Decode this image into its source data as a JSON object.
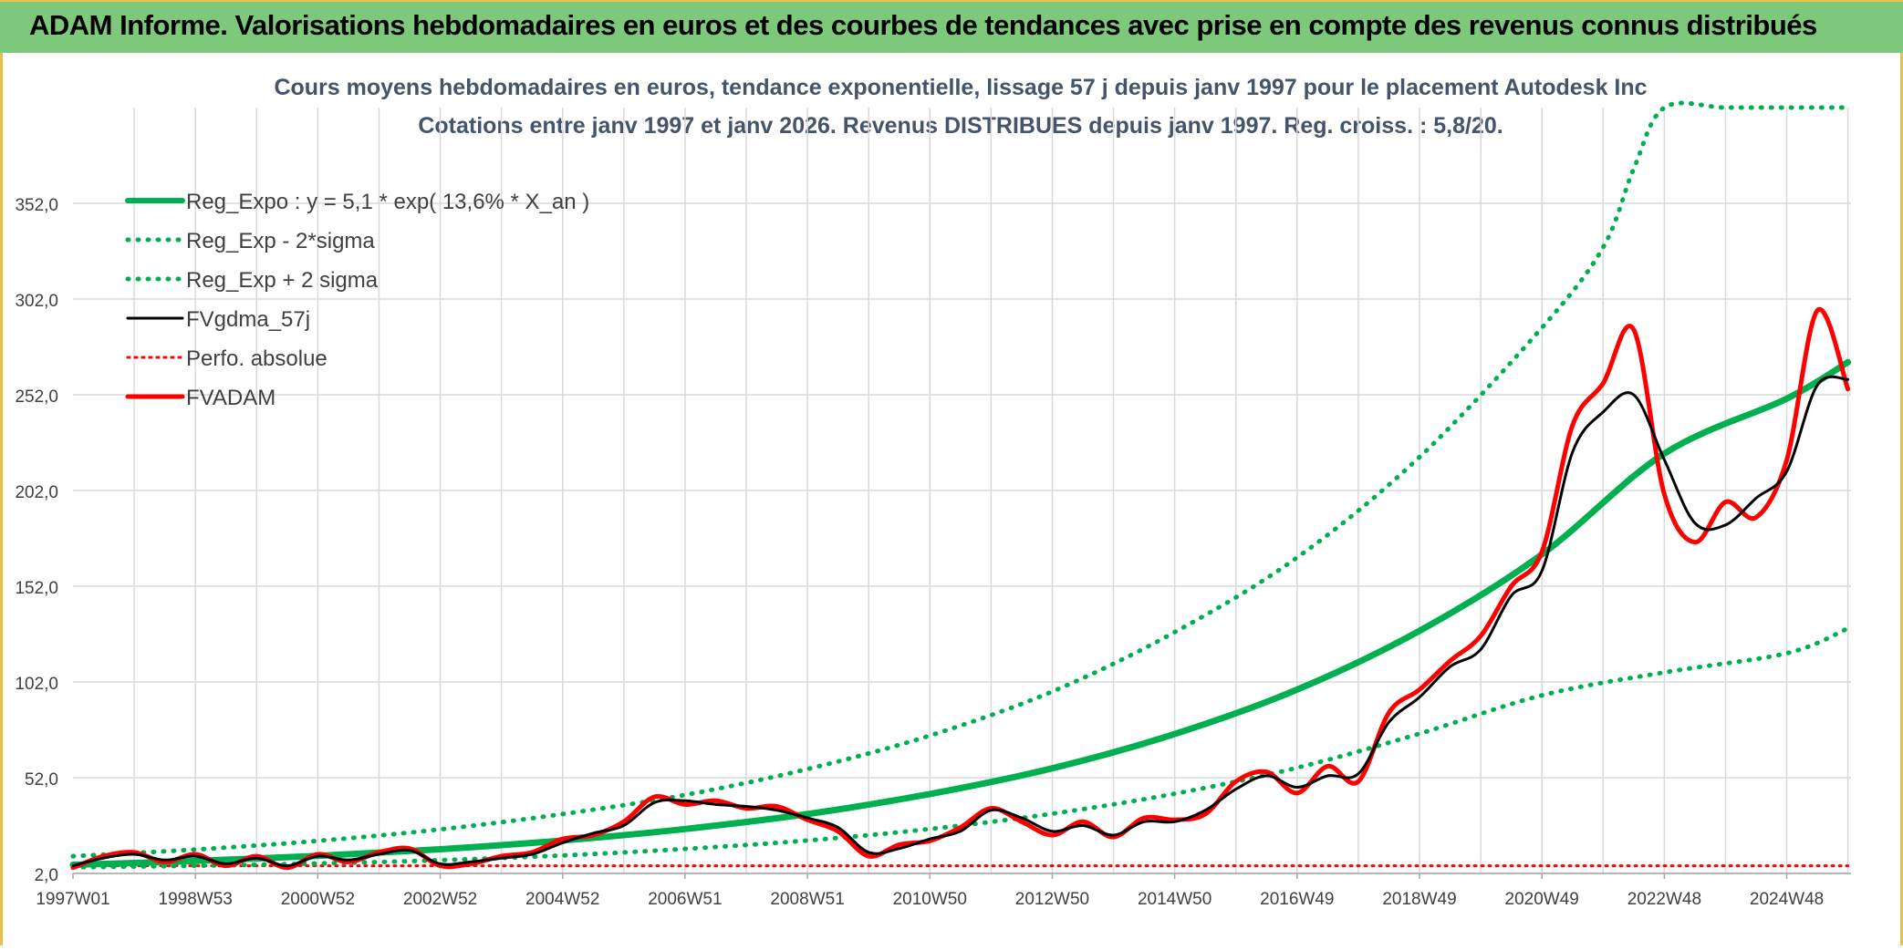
{
  "banner": {
    "title": "ADAM Informe. Valorisations hebdomadaires en euros et des courbes de tendances avec prise en compte des revenus connus distribués"
  },
  "colors": {
    "banner_bg": "#7dc87a",
    "trend": "#00b050",
    "gdma": "#000000",
    "perfo": "#ff0000",
    "adam": "#ff0000",
    "grid": "#d9d9d9"
  },
  "chart_data": {
    "type": "line",
    "title": "Cours moyens hebdomadaires en euros, tendance exponentielle, lissage 57 j depuis janv 1997 pour le placement Autodesk Inc",
    "subtitle": "Cotations entre janv 1997 et janv 2026. Revenus DISTRIBUES depuis janv 1997. Reg. croiss. : 5,8/20.",
    "xlabel": "",
    "ylabel": "",
    "x_range": [
      1997.0,
      2026.05
    ],
    "ylim": [
      2,
      402
    ],
    "y_ticks": [
      "2,0",
      "52,0",
      "102,0",
      "152,0",
      "202,0",
      "252,0",
      "302,0",
      "352,0"
    ],
    "x_tick_labels": [
      "1997W01",
      "1998W53",
      "2000W52",
      "2002W52",
      "2004W52",
      "2006W51",
      "2008W51",
      "2010W50",
      "2012W50",
      "2014W50",
      "2016W49",
      "2018W49",
      "2020W49",
      "2022W48",
      "2024W48"
    ],
    "x_tick_years": [
      1997.0,
      1999.0,
      2001.0,
      2003.0,
      2005.0,
      2007.0,
      2009.0,
      2011.0,
      2013.0,
      2015.0,
      2017.0,
      2019.0,
      2021.0,
      2023.0,
      2025.0
    ],
    "legend": [
      {
        "label": "Reg_Expo : y = 5,1 * exp( 13,6% *  X_an )",
        "color": "#00b050",
        "style": "solid-thick"
      },
      {
        "label": "Reg_Exp - 2*sigma",
        "color": "#00b050",
        "style": "dotted"
      },
      {
        "label": "Reg_Exp + 2 sigma",
        "color": "#00b050",
        "style": "dotted"
      },
      {
        "label": "FVgdma_57j",
        "color": "#000000",
        "style": "solid"
      },
      {
        "label": "Perfo. absolue",
        "color": "#ff0000",
        "style": "dotted"
      },
      {
        "label": "FVADAM",
        "color": "#ff0000",
        "style": "solid-thick"
      }
    ],
    "series": [
      {
        "name": "Reg_Expo : y = 5,1 * exp( 13,6% *  X_an )",
        "x": [
          1997,
          1999,
          2001,
          2003,
          2005,
          2007,
          2009,
          2011,
          2013,
          2015,
          2017,
          2019,
          2021,
          2023,
          2025,
          2026
        ],
        "values": [
          6.5,
          8.5,
          11.2,
          14.6,
          19.2,
          25.2,
          33,
          43.5,
          56.9,
          74.8,
          98,
          128.7,
          168.6,
          221.3,
          250,
          269
        ]
      },
      {
        "name": "Reg_Exp - 2*sigma",
        "x": [
          1997,
          1999,
          2001,
          2003,
          2005,
          2007,
          2009,
          2011,
          2013,
          2015,
          2017,
          2019,
          2021,
          2023,
          2025,
          2026
        ],
        "values": [
          5.2,
          6.0,
          7.2,
          8.9,
          11.4,
          14.8,
          19.2,
          25.2,
          33.2,
          43.6,
          57.2,
          75.0,
          95.0,
          107,
          117,
          130
        ]
      },
      {
        "name": "Reg_Exp + 2 sigma",
        "x": [
          1997,
          1999,
          2001,
          2003,
          2005,
          2007,
          2009,
          2011,
          2013,
          2015,
          2017,
          2019,
          2021,
          2022,
          2022.5,
          2023,
          2024,
          2025,
          2026
        ],
        "values": [
          11,
          14.5,
          19,
          25,
          33,
          43,
          56.5,
          74,
          97,
          128,
          167,
          219.5,
          287,
          329,
          370,
          402,
          402,
          402,
          402
        ]
      },
      {
        "name": "FVgdma_57j",
        "x": [
          1997,
          1997.5,
          1998,
          1998.5,
          1999,
          1999.5,
          2000,
          2000.5,
          2001,
          2001.5,
          2002,
          2002.5,
          2003,
          2003.5,
          2004,
          2004.5,
          2005,
          2005.5,
          2006,
          2006.5,
          2007,
          2007.5,
          2008,
          2008.5,
          2009,
          2009.5,
          2010,
          2010.5,
          2011,
          2011.5,
          2012,
          2012.5,
          2013,
          2013.5,
          2014,
          2014.5,
          2015,
          2015.5,
          2016,
          2016.5,
          2017,
          2017.5,
          2018,
          2018.5,
          2019,
          2019.5,
          2020,
          2020.5,
          2021,
          2021.5,
          2022,
          2022.5,
          2023,
          2023.5,
          2024,
          2024.5,
          2025,
          2025.5,
          2026
        ],
        "values": [
          6,
          10,
          12,
          9,
          11,
          7,
          10,
          6,
          11,
          9,
          12,
          14,
          7,
          8,
          10,
          12,
          18,
          23,
          27,
          39,
          40,
          38,
          37,
          35,
          31,
          26,
          13,
          15,
          20,
          24,
          35,
          31,
          24,
          27,
          22,
          29,
          29,
          35,
          46,
          53,
          47,
          53,
          54,
          81,
          94,
          110,
          119,
          147,
          160,
          222,
          243,
          252,
          218,
          185,
          184,
          198,
          212,
          257,
          260
        ]
      },
      {
        "name": "Perfo. absolue",
        "x": [
          1997,
          2026
        ],
        "values": [
          6,
          6
        ]
      },
      {
        "name": "FVADAM",
        "x": [
          1997,
          1997.5,
          1998,
          1998.5,
          1999,
          1999.5,
          2000,
          2000.5,
          2001,
          2001.5,
          2002,
          2002.5,
          2003,
          2003.5,
          2004,
          2004.5,
          2005,
          2005.5,
          2006,
          2006.5,
          2007,
          2007.5,
          2008,
          2008.5,
          2009,
          2009.5,
          2010,
          2010.5,
          2011,
          2011.5,
          2012,
          2012.5,
          2013,
          2013.5,
          2014,
          2014.5,
          2015,
          2015.5,
          2016,
          2016.5,
          2017,
          2017.5,
          2018,
          2018.5,
          2019,
          2019.5,
          2020,
          2020.5,
          2021,
          2021.5,
          2022,
          2022.5,
          2023,
          2023.5,
          2024,
          2024.5,
          2025,
          2025.5,
          2026
        ],
        "values": [
          5,
          11,
          13,
          8,
          12,
          6,
          11,
          5,
          12,
          8,
          13,
          15,
          6,
          7,
          11,
          13,
          20,
          22,
          29,
          42,
          38,
          40,
          36,
          37,
          30,
          24,
          11,
          17,
          19,
          26,
          36,
          29,
          22,
          29,
          21,
          31,
          30,
          33,
          50,
          55,
          44,
          58,
          50,
          86,
          98,
          113,
          126,
          152,
          170,
          236,
          258,
          286,
          200,
          175,
          196,
          188,
          218,
          296,
          255
        ]
      }
    ]
  }
}
